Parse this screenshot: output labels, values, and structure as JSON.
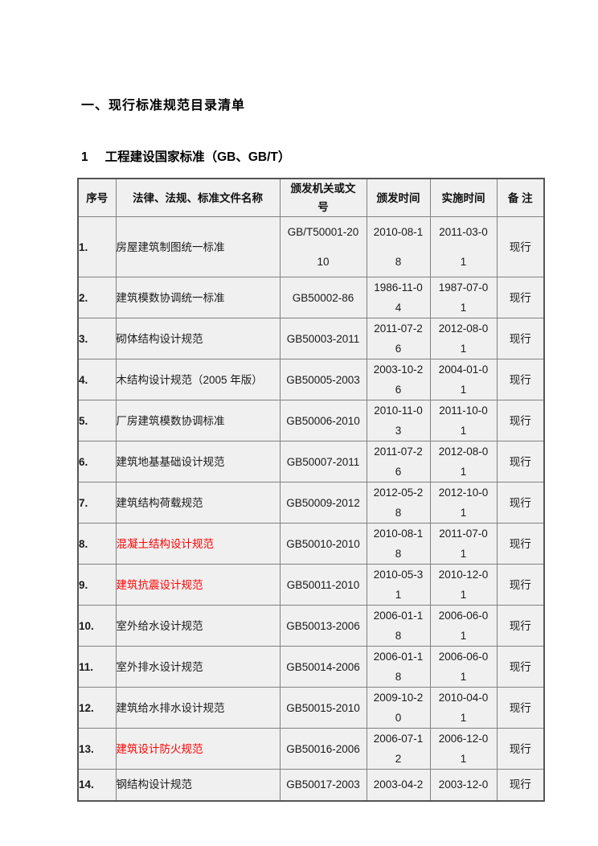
{
  "section_title": "一、现行标准规范目录清单",
  "subsection": {
    "number": "1",
    "title": "工程建设国家标准（GB、GB/T）"
  },
  "table": {
    "columns": {
      "no": "序号",
      "name": "法律、法规、标准文件名称",
      "doc": "颁发机关或文\n号",
      "issued": "颁发时间",
      "effective": "实施时间",
      "remark": "备 注"
    },
    "rows": [
      {
        "no": "1.",
        "name": "房屋建筑制图统一标准",
        "doc": "GB/T50001-20\n10",
        "issued": "2010-08-1\n8",
        "effective": "2011-03-0\n1",
        "remark": "现行",
        "red": false
      },
      {
        "no": "2.",
        "name": "建筑模数协调统一标准",
        "doc": "GB50002-86",
        "issued": "1986-11-0\n4",
        "effective": "1987-07-0\n1",
        "remark": "现行",
        "red": false
      },
      {
        "no": "3.",
        "name": "砌体结构设计规范",
        "doc": "GB50003-2011",
        "issued": "2011-07-2\n6",
        "effective": "2012-08-0\n1",
        "remark": "现行",
        "red": false
      },
      {
        "no": "4.",
        "name": "木结构设计规范（2005 年版）",
        "doc": "GB50005-2003",
        "issued": "2003-10-2\n6",
        "effective": "2004-01-0\n1",
        "remark": "现行",
        "red": false
      },
      {
        "no": "5.",
        "name": "厂房建筑模数协调标准",
        "doc": "GB50006-2010",
        "issued": "2010-11-0\n3",
        "effective": "2011-10-0\n1",
        "remark": "现行",
        "red": false
      },
      {
        "no": "6.",
        "name": "建筑地基基础设计规范",
        "doc": "GB50007-2011",
        "issued": "2011-07-2\n6",
        "effective": "2012-08-0\n1",
        "remark": "现行",
        "red": false
      },
      {
        "no": "7.",
        "name": "建筑结构荷载规范",
        "doc": "GB50009-2012",
        "issued": "2012-05-2\n8",
        "effective": "2012-10-0\n1",
        "remark": "现行",
        "red": false
      },
      {
        "no": "8.",
        "name": "混凝土结构设计规范",
        "doc": "GB50010-2010",
        "issued": "2010-08-1\n8",
        "effective": "2011-07-0\n1",
        "remark": "现行",
        "red": true
      },
      {
        "no": "9.",
        "name": "建筑抗震设计规范",
        "doc": "GB50011-2010",
        "issued": "2010-05-3\n1",
        "effective": "2010-12-0\n1",
        "remark": "现行",
        "red": true
      },
      {
        "no": "10.",
        "name": "室外给水设计规范",
        "doc": "GB50013-2006",
        "issued": "2006-01-1\n8",
        "effective": "2006-06-0\n1",
        "remark": "现行",
        "red": false
      },
      {
        "no": "11.",
        "name": "室外排水设计规范",
        "doc": "GB50014-2006",
        "issued": "2006-01-1\n8",
        "effective": "2006-06-0\n1",
        "remark": "现行",
        "red": false
      },
      {
        "no": "12.",
        "name": "建筑给水排水设计规范",
        "doc": "GB50015-2010",
        "issued": "2009-10-2\n0",
        "effective": "2010-04-0\n1",
        "remark": "现行",
        "red": false
      },
      {
        "no": "13.",
        "name": "建筑设计防火规范",
        "doc": "GB50016-2006",
        "issued": "2006-07-1\n2",
        "effective": "2006-12-0\n1",
        "remark": "现行",
        "red": true
      },
      {
        "no": "14.",
        "name": "钢结构设计规范",
        "doc": "GB50017-2003",
        "issued": "2003-04-2",
        "effective": "2003-12-0",
        "remark": "现行",
        "red": false
      }
    ]
  },
  "colors": {
    "page_bg": "#ffffff",
    "cell_bg": "#f0f0f0",
    "border": "#808080",
    "outer_border": "#555555",
    "text": "#1a1a1a",
    "highlight_red": "#ff0000"
  }
}
